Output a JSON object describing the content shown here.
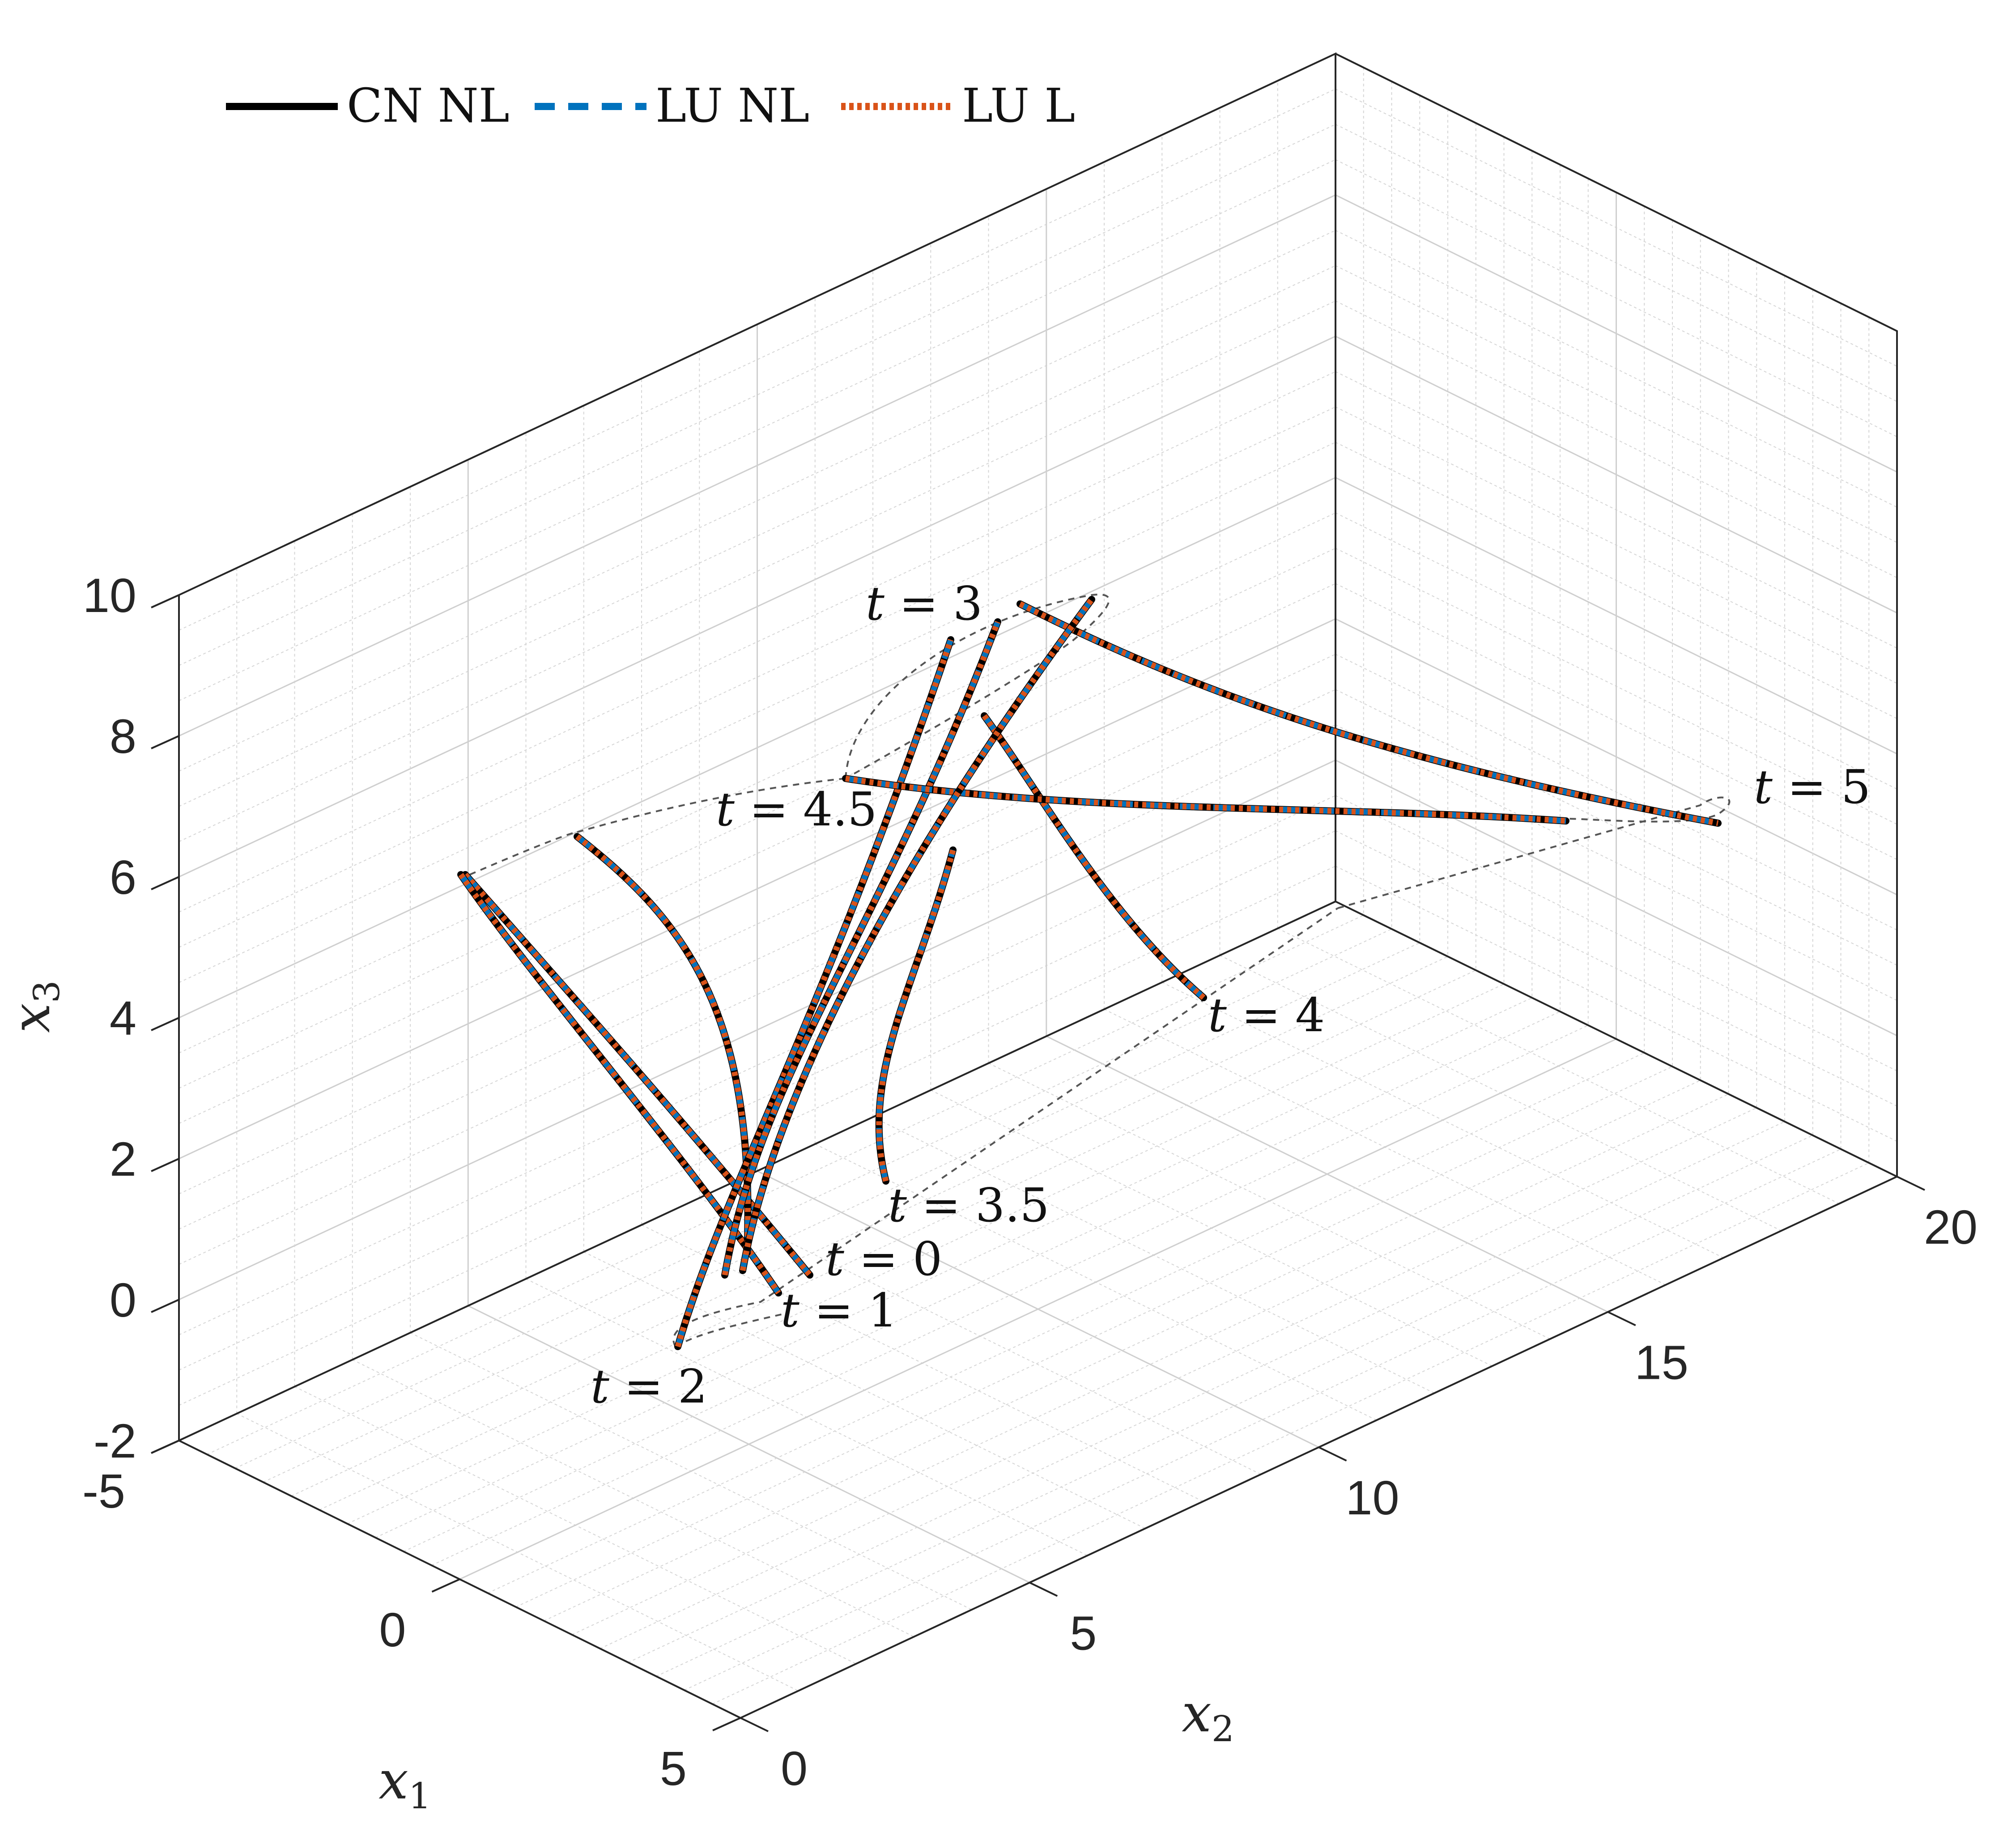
{
  "chart_data": {
    "type": "line",
    "projection": "3d-isometric",
    "title": "",
    "axes": {
      "x1": {
        "var": "x",
        "sub": "1",
        "ticks": [
          "-5",
          "0",
          "5"
        ],
        "range": [
          -5,
          5
        ]
      },
      "x2": {
        "var": "x",
        "sub": "2",
        "ticks": [
          "0",
          "5",
          "10",
          "15",
          "20"
        ],
        "range": [
          0,
          20
        ]
      },
      "x3": {
        "var": "x",
        "sub": "3",
        "ticks": [
          "-2",
          "0",
          "2",
          "4",
          "6",
          "8",
          "10"
        ],
        "range": [
          -2,
          10
        ]
      }
    },
    "grid": true,
    "legend": {
      "placement": "top-left",
      "entries": [
        {
          "label": "CN NL",
          "style": "solid",
          "color": "#000000"
        },
        {
          "label": "LU NL",
          "style": "dashed",
          "color": "#0072BD"
        },
        {
          "label": "LU L",
          "style": "dotted",
          "color": "#D95319"
        }
      ]
    },
    "time_labels": [
      {
        "var": "t",
        "eq": "= 0"
      },
      {
        "var": "t",
        "eq": "= 1"
      },
      {
        "var": "t",
        "eq": "= 2"
      },
      {
        "var": "t",
        "eq": "= 3"
      },
      {
        "var": "t",
        "eq": "= 3.5"
      },
      {
        "var": "t",
        "eq": "= 4"
      },
      {
        "var": "t",
        "eq": "= 4.5"
      },
      {
        "var": "t",
        "eq": "= 5"
      }
    ],
    "series_note_colors": {
      "outline": "#555555"
    }
  }
}
